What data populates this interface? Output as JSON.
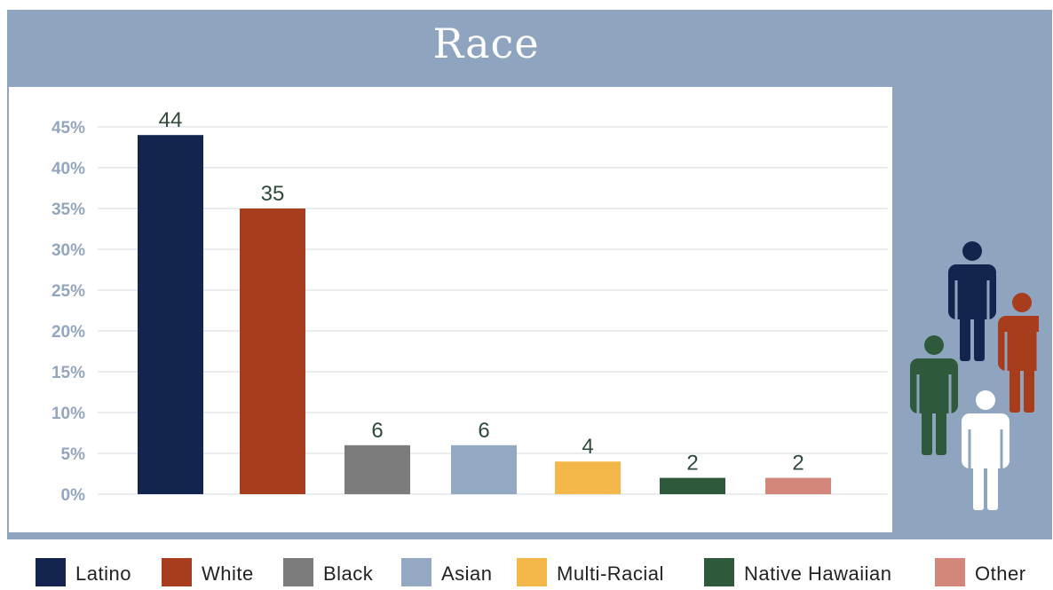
{
  "title": "Race",
  "chart_data": {
    "type": "bar",
    "categories": [
      "Latino",
      "White",
      "Black",
      "Asian",
      "Multi-Racial",
      "Native Hawaiian",
      "Other"
    ],
    "values": [
      44,
      35,
      6,
      6,
      4,
      2,
      2
    ],
    "colors": [
      "#13254f",
      "#a73d1c",
      "#7c7c7c",
      "#93a9c1",
      "#f3b849",
      "#2e5a3b",
      "#d3877a"
    ],
    "ylim": [
      0,
      45
    ],
    "yticks": [
      0,
      5,
      10,
      15,
      20,
      25,
      30,
      35,
      40,
      45
    ],
    "ytick_labels": [
      "0%",
      "5%",
      "10%",
      "15%",
      "20%",
      "25%",
      "30%",
      "35%",
      "40%",
      "45%"
    ],
    "data_labels": [
      "44",
      "35",
      "6",
      "6",
      "4",
      "2",
      "2"
    ],
    "grid": true,
    "legend_position": "bottom"
  },
  "people_icons": [
    {
      "name": "person-navy-icon",
      "color": "#13254f"
    },
    {
      "name": "person-orange-icon",
      "color": "#a73d1c"
    },
    {
      "name": "person-green-icon",
      "color": "#2e5a3b"
    },
    {
      "name": "person-white-icon",
      "color": "#ffffff"
    }
  ]
}
